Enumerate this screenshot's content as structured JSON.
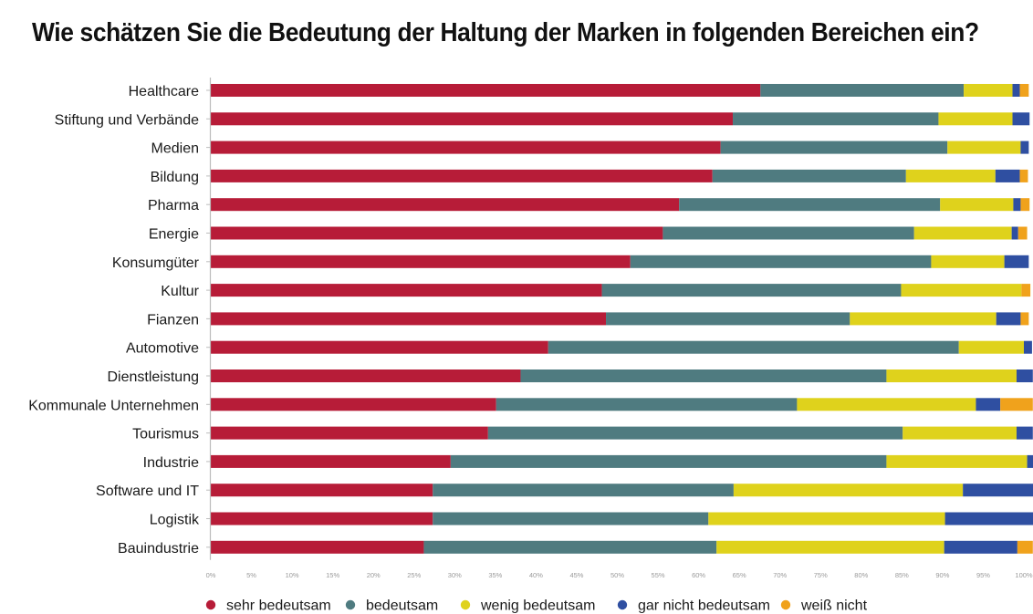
{
  "title": "Wie schätzen Sie die Bedeutung der Haltung der Marken in folgenden Bereichen ein?",
  "chart_data": {
    "type": "bar",
    "orientation": "horizontal",
    "stacked": true,
    "title": "Wie schätzen Sie die Bedeutung der Haltung der Marken in folgenden Bereichen ein?",
    "xlabel": "",
    "ylabel": "",
    "xlim": [
      0,
      100
    ],
    "x_ticks": [
      "0%",
      "5%",
      "10%",
      "15%",
      "20%",
      "25%",
      "30%",
      "35%",
      "40%",
      "45%",
      "50%",
      "55%",
      "60%",
      "65%",
      "70%",
      "75%",
      "80%",
      "85%",
      "90%",
      "95%",
      "100%"
    ],
    "grid": false,
    "legend_position": "bottom",
    "categories": [
      "Healthcare",
      "Stiftung und Verbände",
      "Medien",
      "Bildung",
      "Pharma",
      "Energie",
      "Konsumgüter",
      "Kultur",
      "Fianzen",
      "Automotive",
      "Dienstleistung",
      "Kommunale Unternehmen",
      "Tourismus",
      "Industrie",
      "Software und IT",
      "Logistik",
      "Bauindustrie"
    ],
    "series": [
      {
        "name": "sehr bedeutsam",
        "color": "#b71c38",
        "values": [
          67.6,
          64.2,
          62.7,
          61.7,
          57.6,
          55.6,
          51.6,
          48.1,
          48.6,
          41.5,
          38.1,
          35.1,
          34.1,
          29.5,
          27.3,
          27.3,
          26.2
        ]
      },
      {
        "name": "bedeutsam",
        "color": "#4f7b80",
        "values": [
          25.0,
          25.3,
          27.9,
          23.8,
          32.1,
          30.9,
          37.0,
          36.8,
          30.0,
          50.5,
          45.0,
          37.0,
          51.0,
          53.6,
          37.0,
          33.9,
          36.0
        ]
      },
      {
        "name": "wenig bedeutsam",
        "color": "#dfd21c",
        "values": [
          6.0,
          9.1,
          9.0,
          11.0,
          9.0,
          12.0,
          9.0,
          14.8,
          18.0,
          8.0,
          16.0,
          22.0,
          14.0,
          17.3,
          28.2,
          29.1,
          28.0
        ]
      },
      {
        "name": "gar nicht bedeutsam",
        "color": "#2f4fa1",
        "values": [
          0.9,
          2.1,
          1.0,
          3.0,
          0.9,
          0.8,
          3.0,
          0.0,
          3.0,
          1.0,
          2.0,
          3.0,
          2.0,
          1.0,
          9.0,
          11.0,
          9.0
        ]
      },
      {
        "name": "weiß nicht",
        "color": "#f0a21c",
        "values": [
          1.1,
          0.0,
          0.0,
          1.0,
          1.1,
          1.1,
          0.0,
          1.1,
          1.0,
          0.0,
          0.0,
          4.0,
          0.0,
          0.0,
          0.0,
          0.0,
          1.9
        ]
      }
    ]
  }
}
